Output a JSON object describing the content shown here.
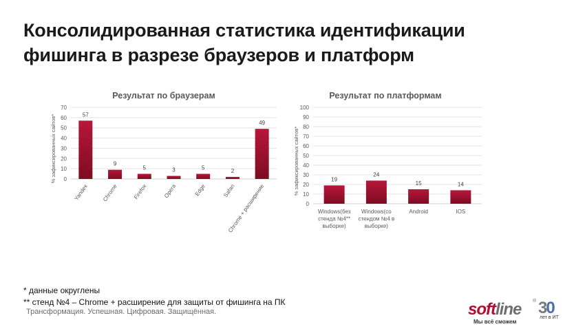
{
  "slide": {
    "title_line1": "Консолидированная статистика идентификации",
    "title_line2": "фишинга в разрезе браузеров и платформ",
    "footnote1": "*  данные округлены",
    "footnote2": "** стенд №4 – Chrome + расширение для защиты от фишинга на ПК",
    "tagline": "Трансформация. Успешная. Цифровая. Защищённая.",
    "logo": {
      "soft": "soft",
      "line": "line",
      "reg": "®",
      "slogan": "Мы всё сможем",
      "years_3": "3",
      "years_0": "0",
      "years_sub": "лет в ИТ"
    }
  },
  "colors": {
    "bar_top": "#b8163a",
    "bar_bottom": "#7d0c22",
    "grid": "#e3e3e3",
    "axis_text": "#595959",
    "chart_title": "#595959"
  },
  "chart_data": [
    {
      "type": "bar",
      "title": "Результат по браузерам",
      "ylabel": "% зафиксированных сайтов*",
      "xlabel": "",
      "ylim": [
        0,
        70
      ],
      "yticks": [
        0,
        10,
        20,
        30,
        40,
        50,
        60,
        70
      ],
      "categories": [
        "Yandex",
        "Chrome",
        "Firefox",
        "Opera",
        "Edge",
        "Safari",
        "Chrome + расширение"
      ],
      "values": [
        57,
        9,
        5,
        3,
        5,
        2,
        49
      ],
      "data_labels": [
        "57",
        "9",
        "5",
        "3",
        "5",
        "2",
        "49"
      ],
      "grid": true,
      "legend": "none"
    },
    {
      "type": "bar",
      "title": "Результат по платформам",
      "ylabel": "% зафиксированных сайтов*",
      "xlabel": "",
      "ylim": [
        0,
        100
      ],
      "yticks": [
        0,
        10,
        20,
        30,
        40,
        50,
        60,
        70,
        80,
        90,
        100
      ],
      "categories": [
        [
          "Windows(без",
          "стенда №4**",
          "выборке)"
        ],
        [
          "Windows(со",
          "стендом №4 в",
          "выборке)"
        ],
        [
          "Android"
        ],
        [
          "IOS"
        ]
      ],
      "values": [
        19,
        24,
        15,
        14
      ],
      "data_labels": [
        "19",
        "24",
        "15",
        "14"
      ],
      "grid": true,
      "legend": "none"
    }
  ]
}
